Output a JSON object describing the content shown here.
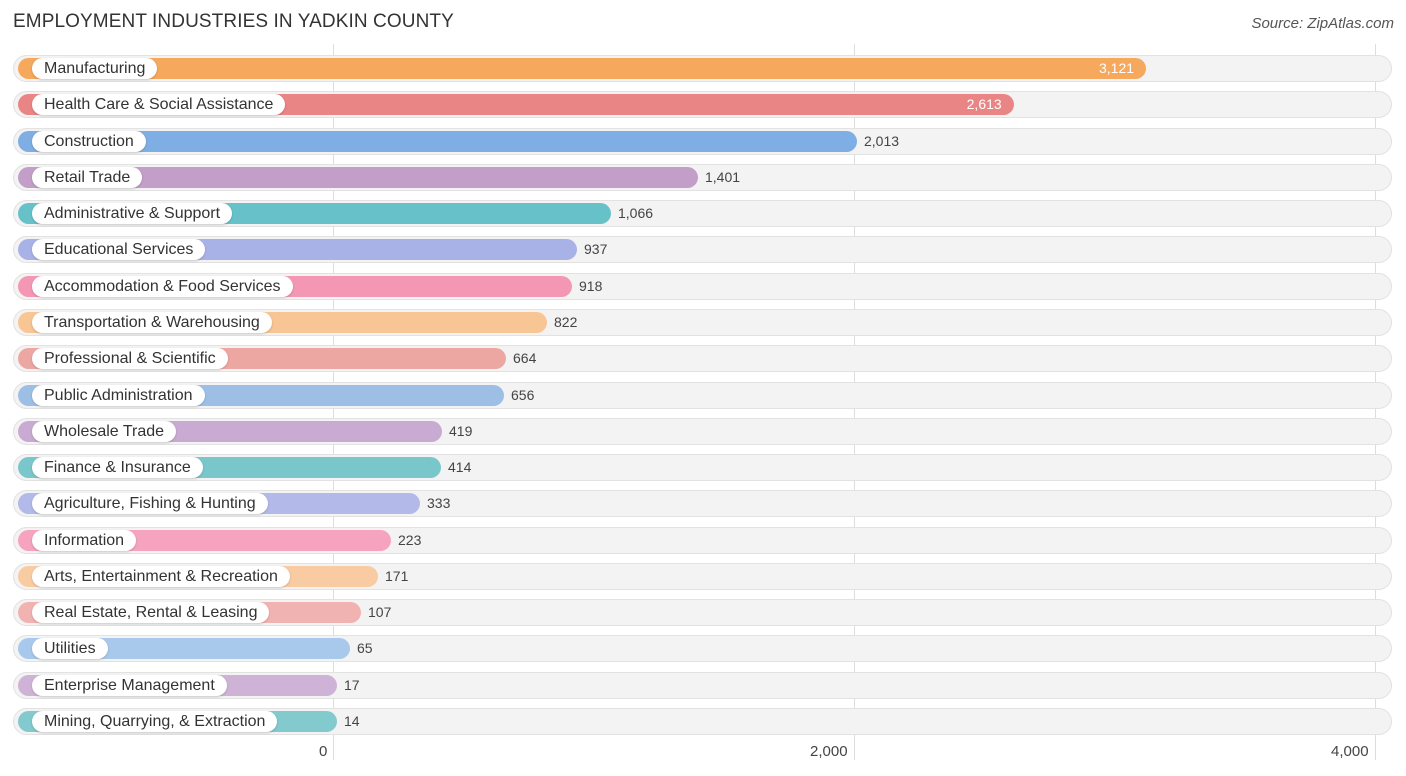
{
  "chart_data": {
    "type": "bar",
    "orientation": "horizontal",
    "title": "EMPLOYMENT INDUSTRIES IN YADKIN COUNTY",
    "source": "Source: ZipAtlas.com",
    "xlim": [
      0,
      4000
    ],
    "xticks": [
      0,
      2000,
      4000
    ],
    "xtick_labels": [
      "0",
      "2,000",
      "4,000"
    ],
    "grid": true,
    "categories": [
      "Manufacturing",
      "Health Care & Social Assistance",
      "Construction",
      "Retail Trade",
      "Administrative & Support",
      "Educational Services",
      "Accommodation & Food Services",
      "Transportation & Warehousing",
      "Professional & Scientific",
      "Public Administration",
      "Wholesale Trade",
      "Finance & Insurance",
      "Agriculture, Fishing & Hunting",
      "Information",
      "Arts, Entertainment & Recreation",
      "Real Estate, Rental & Leasing",
      "Utilities",
      "Enterprise Management",
      "Mining, Quarrying, & Extraction"
    ],
    "values": [
      3121,
      2613,
      2013,
      1401,
      1066,
      937,
      918,
      822,
      664,
      656,
      419,
      414,
      333,
      223,
      171,
      107,
      65,
      17,
      14
    ],
    "value_labels": [
      "3,121",
      "2,613",
      "2,013",
      "1,401",
      "1,066",
      "937",
      "918",
      "822",
      "664",
      "656",
      "419",
      "414",
      "333",
      "223",
      "171",
      "107",
      "65",
      "17",
      "14"
    ],
    "colors": [
      "#f6a85c",
      "#e98584",
      "#7eaee3",
      "#c29ec8",
      "#66c2c8",
      "#a9b2e6",
      "#f497b4",
      "#f8c594",
      "#eda7a3",
      "#9dbfe6",
      "#c8aad2",
      "#7ac7cb",
      "#b3b9e8",
      "#f6a3bf",
      "#f9cba2",
      "#f1b3b1",
      "#a8c8ec",
      "#cfb3d6",
      "#82cace"
    ]
  }
}
